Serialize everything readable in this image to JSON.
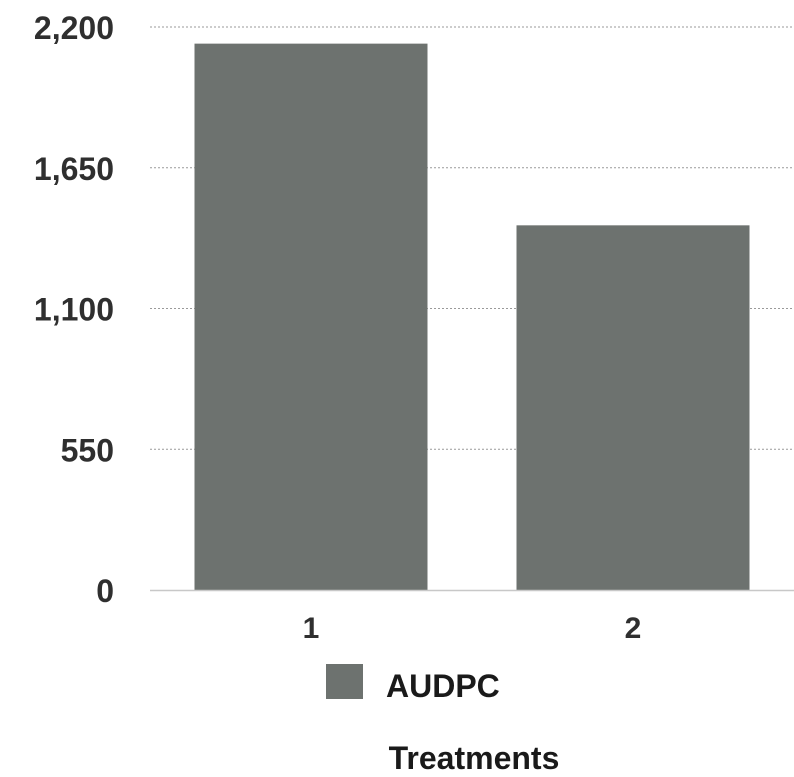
{
  "chart_data": {
    "type": "bar",
    "categories": [
      "1",
      "2"
    ],
    "series": [
      {
        "name": "AUDPC",
        "values": [
          2135,
          1425
        ]
      }
    ],
    "title": "",
    "xlabel": "Treatments",
    "ylabel": "",
    "ylim": [
      0,
      2200
    ],
    "yticks": [
      0,
      550,
      1100,
      1650,
      2200
    ],
    "ytick_labels": [
      "0",
      "550",
      "1,100",
      "1,650",
      "2,200"
    ],
    "grid": true,
    "legend_position": "bottom",
    "colors": {
      "bar": "#6d726f",
      "grid": "#9a9a9a",
      "axis": "#c8c8c8"
    }
  }
}
